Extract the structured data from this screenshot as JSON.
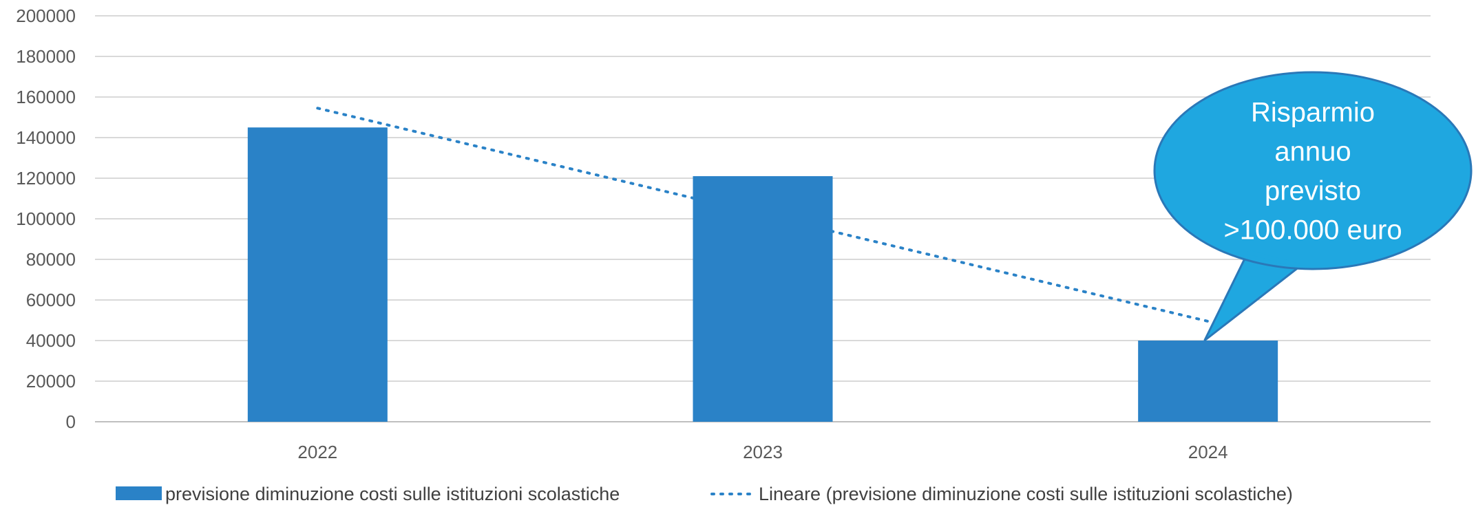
{
  "chart_data": {
    "type": "bar",
    "categories": [
      "2022",
      "2023",
      "2024"
    ],
    "series": [
      {
        "name": "previsione diminuzione costi sulle istituzioni scolastiche",
        "values": [
          145000,
          121000,
          40000
        ],
        "color": "#2a82c7"
      }
    ],
    "trendline": {
      "type": "linear",
      "name": "Lineare (previsione diminuzione costi sulle istituzioni scolastiche)",
      "style": "dotted",
      "color": "#2a82c7"
    },
    "ylim": [
      0,
      200000
    ],
    "yticks": [
      0,
      20000,
      40000,
      60000,
      80000,
      100000,
      120000,
      140000,
      160000,
      180000,
      200000
    ],
    "grid": true,
    "legend_position": "bottom",
    "annotation": {
      "lines": [
        "Risparmio",
        "annuo",
        "previsto",
        ">100.000 euro"
      ],
      "target_category": "2024",
      "fill": "#1fa7e0",
      "stroke": "#2a78b8"
    }
  }
}
